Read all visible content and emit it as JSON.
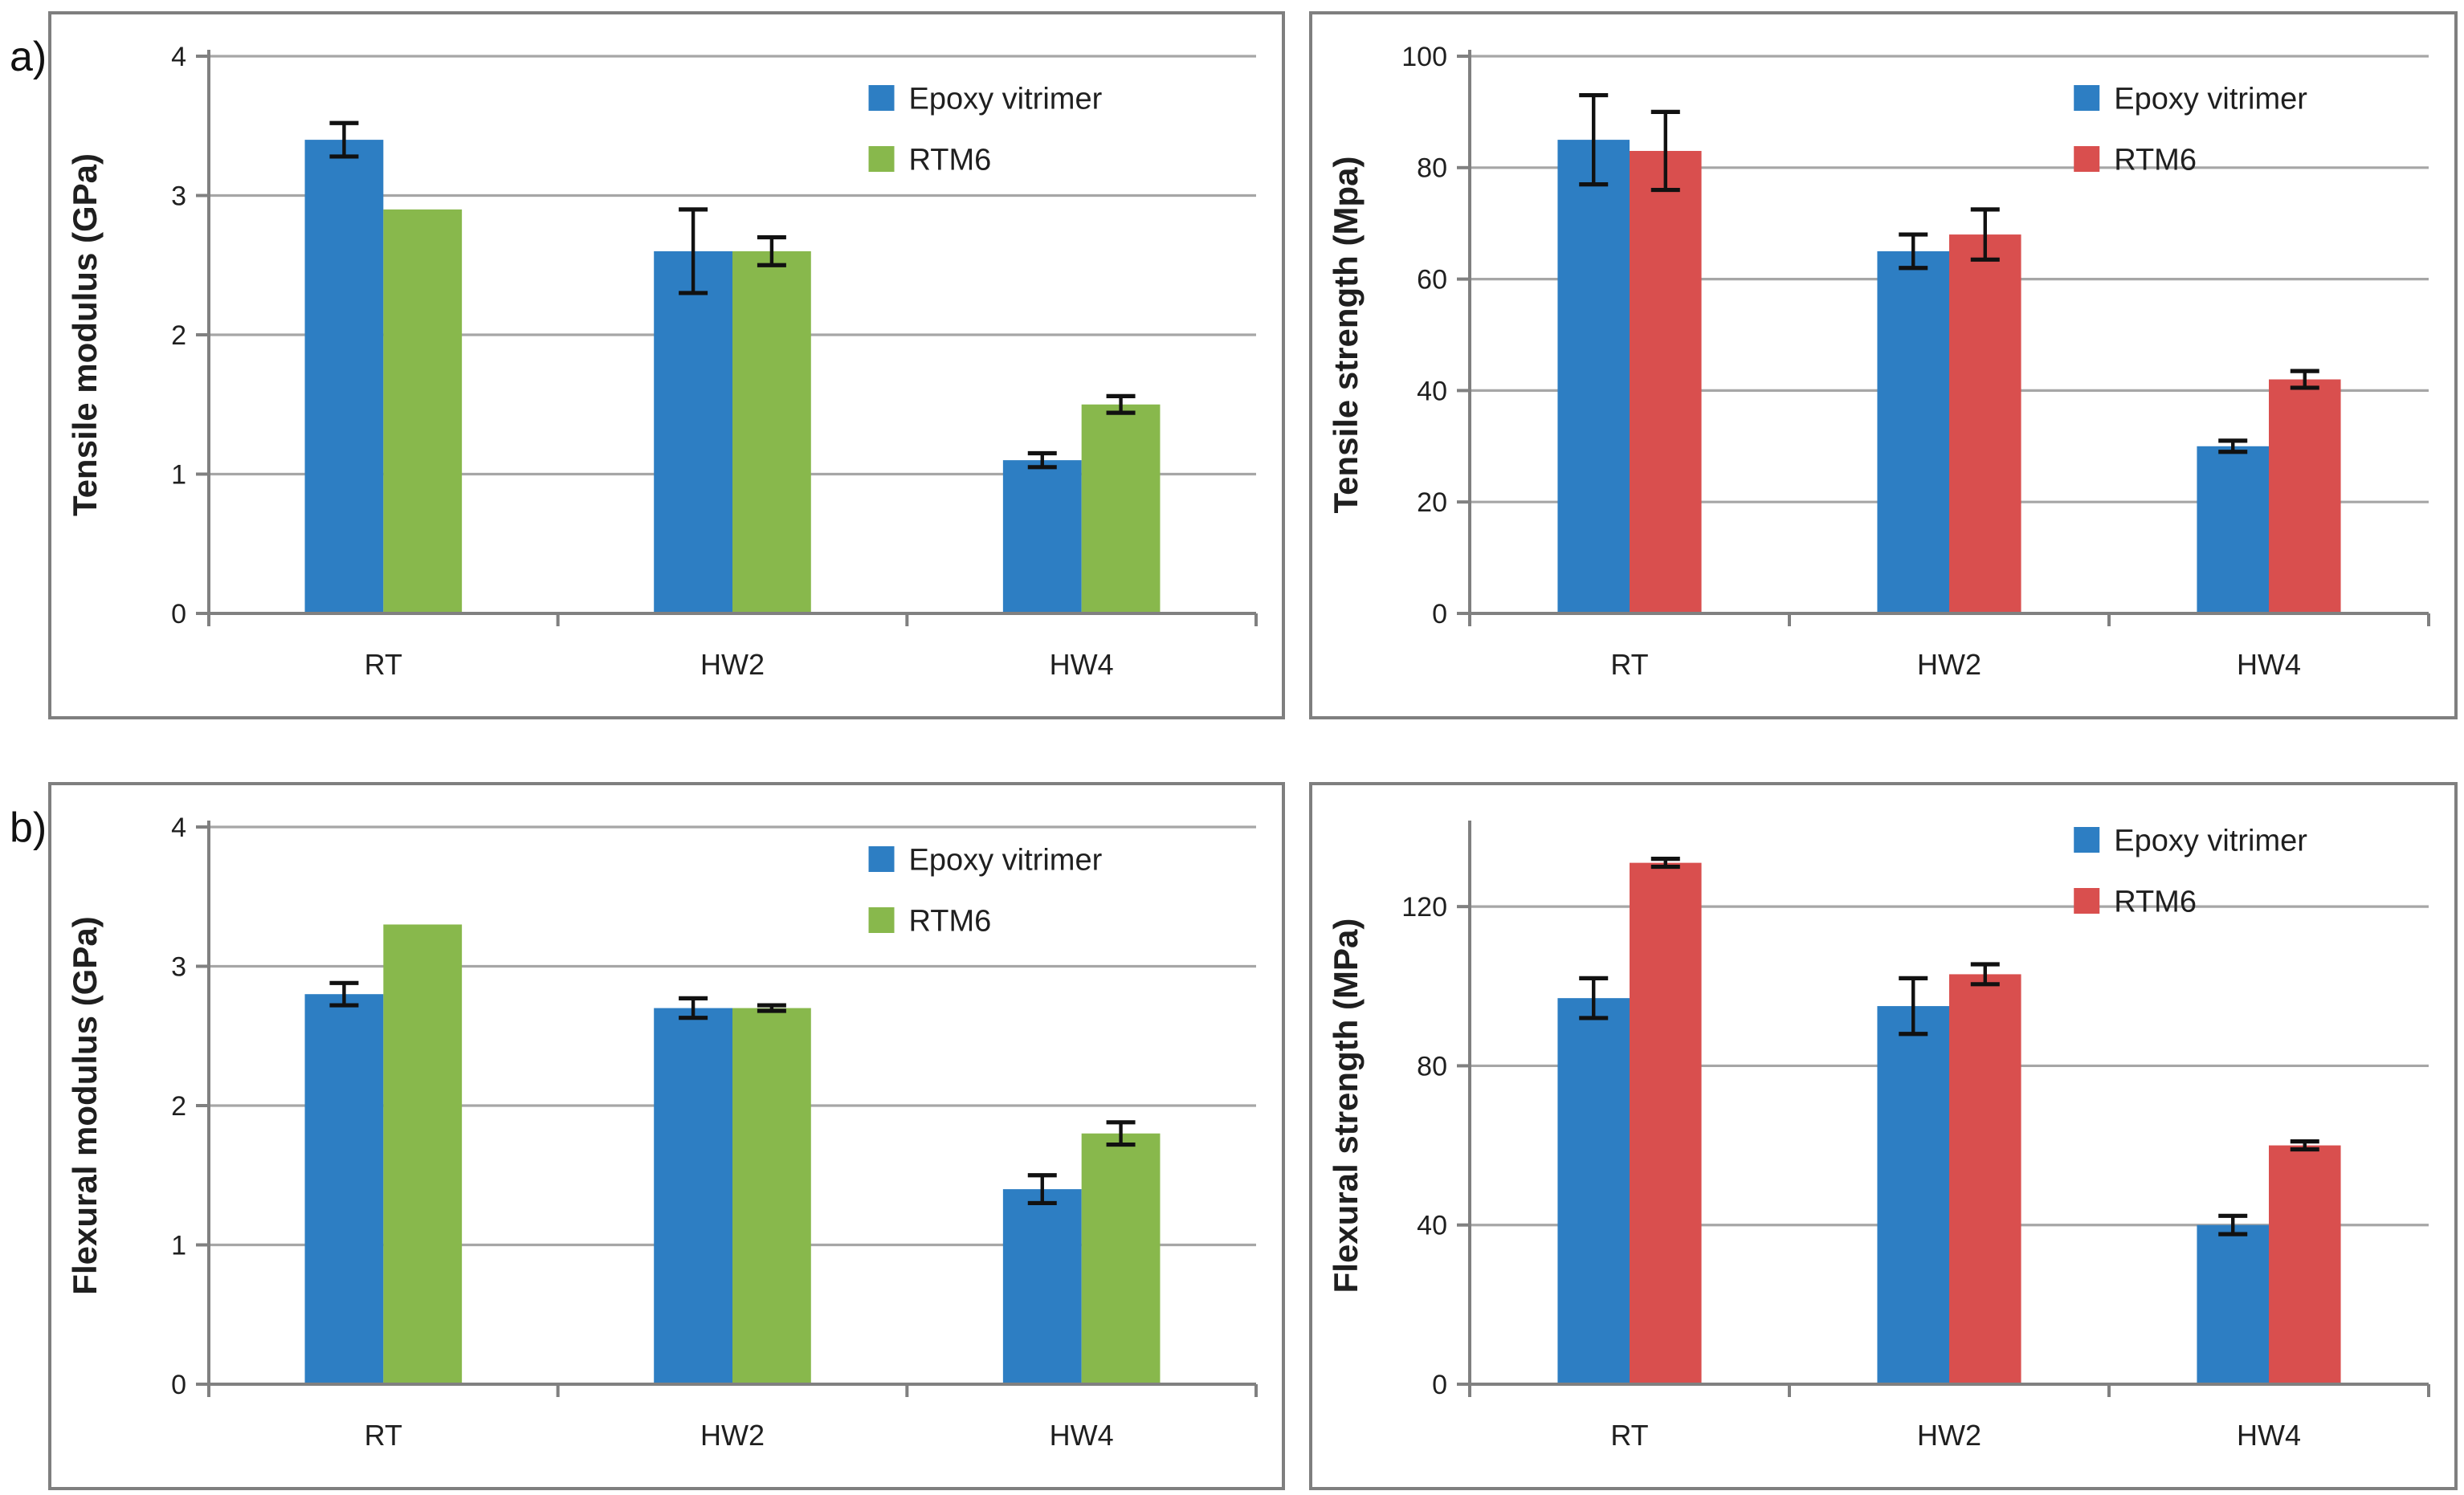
{
  "labels": {
    "a": "a)",
    "b": "b)"
  },
  "colors": {
    "epoxy_blue": "#2d7ec3",
    "rtm6_green": "#88b84c",
    "rtm6_red": "#d94f4e",
    "grid": "#a6a6a6",
    "axis": "#808080",
    "panel_border": "#7f7f7f",
    "text": "#1f1f1f",
    "error_bar": "#111111",
    "background": "#ffffff"
  },
  "chart_data": [
    {
      "id": "tensile-modulus",
      "panel": "a-left",
      "type": "bar",
      "title": "",
      "xlabel": "",
      "ylabel": "Tensile modulus (GPa)",
      "categories": [
        "RT",
        "HW2",
        "HW4"
      ],
      "ylim": [
        0,
        4
      ],
      "yticks": [
        0,
        1,
        2,
        3,
        4
      ],
      "grid": true,
      "legend_position": "top-right-inside",
      "legend_dy": 6,
      "series": [
        {
          "name": "Epoxy vitrimer",
          "color": "#2d7ec3",
          "values": [
            3.4,
            2.6,
            1.1
          ],
          "errors": [
            0.12,
            0.3,
            0.05
          ]
        },
        {
          "name": "RTM6",
          "color": "#88b84c",
          "values": [
            2.9,
            2.6,
            1.5
          ],
          "errors": [
            null,
            0.1,
            0.06
          ]
        }
      ]
    },
    {
      "id": "tensile-strength",
      "panel": "a-right",
      "type": "bar",
      "title": "",
      "xlabel": "",
      "ylabel": "Tensile strength (Mpa)",
      "categories": [
        "RT",
        "HW2",
        "HW4"
      ],
      "ylim": [
        0,
        100
      ],
      "yticks": [
        0,
        20,
        40,
        60,
        80,
        100
      ],
      "grid": true,
      "legend_position": "top-right-inside",
      "legend_dy": 6,
      "series": [
        {
          "name": "Epoxy vitrimer",
          "color": "#2d7ec3",
          "values": [
            85,
            65,
            30
          ],
          "errors": [
            8,
            3,
            1
          ]
        },
        {
          "name": "RTM6",
          "color": "#d94f4e",
          "values": [
            83,
            68,
            42
          ],
          "errors": [
            7,
            4.5,
            1.5
          ]
        }
      ]
    },
    {
      "id": "flexural-modulus",
      "panel": "b-left",
      "type": "bar",
      "title": "",
      "xlabel": "",
      "ylabel": "Flexural modulus (GPa)",
      "categories": [
        "RT",
        "HW2",
        "HW4"
      ],
      "ylim": [
        0,
        4
      ],
      "yticks": [
        0,
        1,
        2,
        3,
        4
      ],
      "grid": true,
      "legend_position": "top-right-inside",
      "legend_dy": 0,
      "series": [
        {
          "name": "Epoxy vitrimer",
          "color": "#2d7ec3",
          "values": [
            2.8,
            2.7,
            1.4
          ],
          "errors": [
            0.08,
            0.07,
            0.1
          ]
        },
        {
          "name": "RTM6",
          "color": "#88b84c",
          "values": [
            3.3,
            2.7,
            1.8
          ],
          "errors": [
            null,
            0.02,
            0.08
          ]
        }
      ]
    },
    {
      "id": "flexural-strength",
      "panel": "b-right",
      "type": "bar",
      "title": "",
      "xlabel": "",
      "ylabel": "Flexural strength (MPa)",
      "categories": [
        "RT",
        "HW2",
        "HW4"
      ],
      "ylim": [
        0,
        140
      ],
      "yticks": [
        0,
        40,
        80,
        120
      ],
      "grid": true,
      "legend_position": "top-right-inside",
      "legend_dy": -12,
      "series": [
        {
          "name": "Epoxy vitrimer",
          "color": "#2d7ec3",
          "values": [
            97,
            95,
            40
          ],
          "errors": [
            5,
            7,
            2.3
          ]
        },
        {
          "name": "RTM6",
          "color": "#d94f4e",
          "values": [
            131,
            103,
            60
          ],
          "errors": [
            1,
            2.5,
            1
          ]
        }
      ]
    }
  ]
}
